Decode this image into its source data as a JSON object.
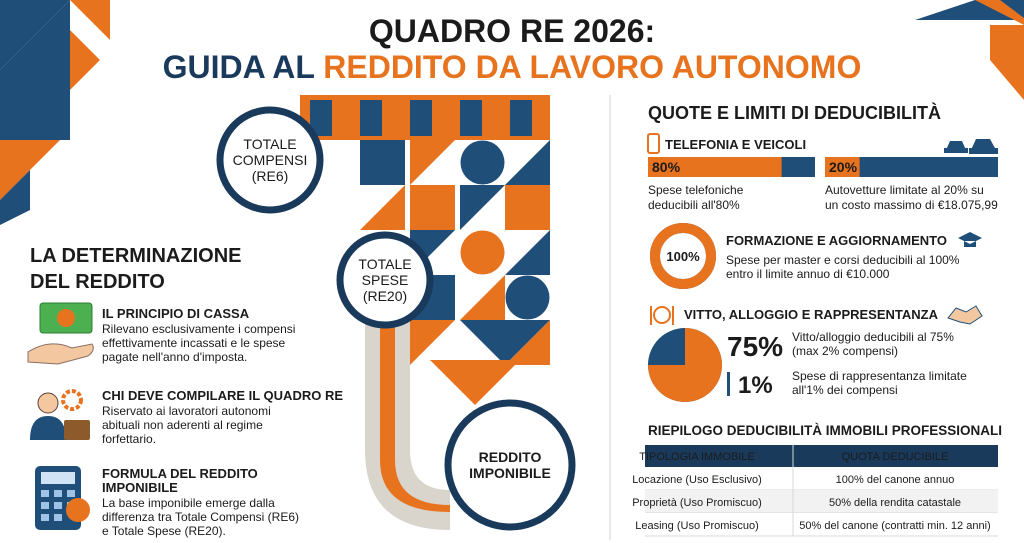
{
  "header": {
    "title_line1": "QUADRO RE 2026:",
    "title_line2": {
      "part1": "GUIDA AL",
      "part2": "REDDITO DA LAVORO AUTONOMO"
    }
  },
  "flow": {
    "nodes": [
      {
        "lines": [
          "TOTALE",
          "COMPENSI",
          "(RE6)"
        ]
      },
      {
        "lines": [
          "TOTALE",
          "SPESE",
          "(RE20)"
        ]
      },
      {
        "lines": [
          "REDDITO",
          "IMPONIBILE"
        ]
      }
    ]
  },
  "left": {
    "heading": [
      "LA DETERMINAZIONE",
      "DEL REDDITO"
    ],
    "items": [
      {
        "title": "IL PRINCIPIO DI CASSA",
        "lines": [
          "Rilevano esclusivamente i compensi",
          "effettivamente incassati e le spese",
          "pagate nell'anno d'imposta."
        ]
      },
      {
        "title": "CHI DEVE COMPILARE IL QUADRO RE",
        "lines": [
          "Riservato ai lavoratori autonomi",
          "abituali non aderenti al regime",
          "forfettario."
        ]
      },
      {
        "title": "FORMULA DEL REDDITO",
        "title2": "IMPONIBILE",
        "lines": [
          "La base imponibile emerge dalla",
          "differenza tra Totale Compensi (RE6)",
          "e Totale Spese (RE20)."
        ]
      }
    ]
  },
  "right": {
    "heading": "QUOTE E LIMITI DI DEDUCIBILITÀ",
    "telefonia": {
      "title": "TELEFONIA E VEICOLI",
      "bars": [
        {
          "value": 80,
          "label": "80%",
          "caption": [
            "Spese telefoniche",
            "deducibili all'80%"
          ]
        },
        {
          "value": 20,
          "label": "20%",
          "caption": [
            "Autovetture limitate al 20% su",
            "un costo massimo di €18.075,99"
          ]
        }
      ]
    },
    "formazione": {
      "value": 100,
      "label": "100%",
      "title": "FORMAZIONE E AGGIORNAMENTO",
      "lines": [
        "Spese per master e corsi deducibili al 100%",
        "entro il limite annuo di €10.000"
      ]
    },
    "vitto": {
      "title": "VITTO, ALLOGGIO E RAPPRESENTANZA",
      "alloggio": {
        "value": 75,
        "label": "75%",
        "lines": [
          "Vitto/alloggio deducibili al 75%",
          "(max 2% compensi)"
        ]
      },
      "rappresentanza": {
        "label": "1%",
        "lines": [
          "Spese di rappresentanza limitate",
          "all'1% dei compensi"
        ]
      }
    },
    "table": {
      "title": "RIEPILOGO DEDUCIBILITÀ IMMOBILI PROFESSIONALI",
      "headers": [
        "TIPOLOGIA IMMOBILE",
        "QUOTA DEDUCIBILE"
      ],
      "rows": [
        [
          "Locazione (Uso Esclusivo)",
          "100% del canone annuo"
        ],
        [
          "Proprietà (Uso Promiscuo)",
          "50% della rendita catastale"
        ],
        [
          "Leasing (Uso Promiscuo)",
          "50% del canone (contratti min. 12 anni)"
        ]
      ]
    }
  }
}
